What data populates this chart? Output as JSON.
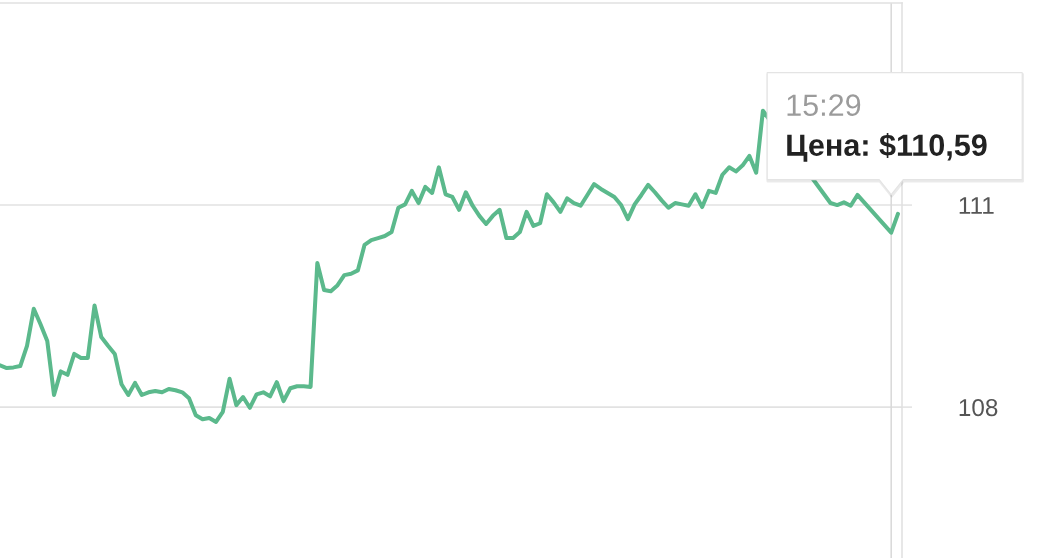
{
  "chart_data": {
    "type": "line",
    "categories": [
      null,
      null,
      null,
      null,
      null,
      null,
      null,
      null,
      null,
      null,
      null,
      null,
      null,
      null,
      null,
      null,
      null,
      null,
      null,
      null,
      null,
      null,
      null,
      null,
      null,
      null,
      null,
      null,
      null,
      null,
      null,
      null,
      null,
      null,
      null,
      null,
      null,
      null,
      null,
      null,
      null,
      null,
      null,
      null,
      null,
      null,
      null,
      null,
      null,
      null,
      null,
      null,
      null,
      null,
      null,
      null,
      null,
      null,
      null,
      null,
      null,
      null,
      null,
      null,
      null,
      null,
      null,
      null,
      null,
      null,
      null,
      null,
      null,
      null,
      null,
      null,
      null,
      null,
      null,
      null,
      null,
      null,
      null,
      null,
      null,
      null,
      null,
      null,
      null,
      null,
      null,
      null,
      null,
      null,
      null,
      null,
      null,
      null,
      null,
      null,
      null,
      null,
      null,
      null,
      null,
      null,
      null,
      null,
      null,
      null,
      null,
      null,
      null,
      null,
      null,
      null,
      null,
      null,
      null,
      null,
      null,
      null,
      null,
      null,
      null,
      null,
      null,
      null,
      null,
      null,
      null,
      null,
      null,
      null
    ],
    "series": [
      {
        "color": "#5bb98c",
        "values": [
          108.62,
          108.58,
          108.59,
          108.61,
          108.91,
          109.46,
          109.23,
          108.98,
          108.18,
          108.53,
          108.48,
          108.79,
          108.73,
          108.73,
          109.51,
          109.04,
          108.91,
          108.79,
          108.34,
          108.18,
          108.36,
          108.18,
          108.22,
          108.24,
          108.22,
          108.27,
          108.25,
          108.22,
          108.13,
          107.88,
          107.82,
          107.84,
          107.78,
          107.93,
          108.42,
          108.03,
          108.15,
          107.99,
          108.19,
          108.22,
          108.16,
          108.37,
          108.09,
          108.28,
          108.31,
          108.31,
          108.3,
          110.14,
          109.74,
          109.72,
          109.81,
          109.96,
          109.98,
          110.03,
          110.41,
          110.48,
          110.51,
          110.54,
          110.6,
          110.96,
          111.01,
          111.21,
          111.03,
          111.27,
          111.18,
          111.56,
          111.16,
          111.12,
          110.93,
          111.19,
          110.99,
          110.84,
          110.72,
          110.84,
          110.93,
          110.51,
          110.51,
          110.6,
          110.9,
          110.69,
          110.73,
          111.16,
          111.04,
          110.9,
          111.1,
          111.03,
          110.99,
          111.15,
          111.31,
          111.24,
          111.18,
          111.12,
          111.0,
          110.79,
          111.01,
          111.15,
          111.3,
          111.19,
          111.07,
          110.96,
          111.03,
          111.01,
          110.99,
          111.16,
          110.97,
          111.21,
          111.18,
          111.45,
          111.56,
          111.5,
          111.59,
          111.73,
          111.48,
          112.4,
          null,
          null,
          null,
          null,
          null,
          null,
          null,
          null,
          null,
          111.03,
          111.0,
          111.04,
          110.99,
          111.15,
          null,
          null,
          null,
          null,
          110.59,
          110.87
        ]
      }
    ],
    "ylim": [
      105.76,
      114
    ],
    "yticks": [
      108,
      111
    ],
    "grid": "y",
    "tick_labels": "y",
    "annotations": [
      "15:29",
      {
        "text": "Цена: $110,59",
        "y": 110.59
      }
    ]
  }
}
